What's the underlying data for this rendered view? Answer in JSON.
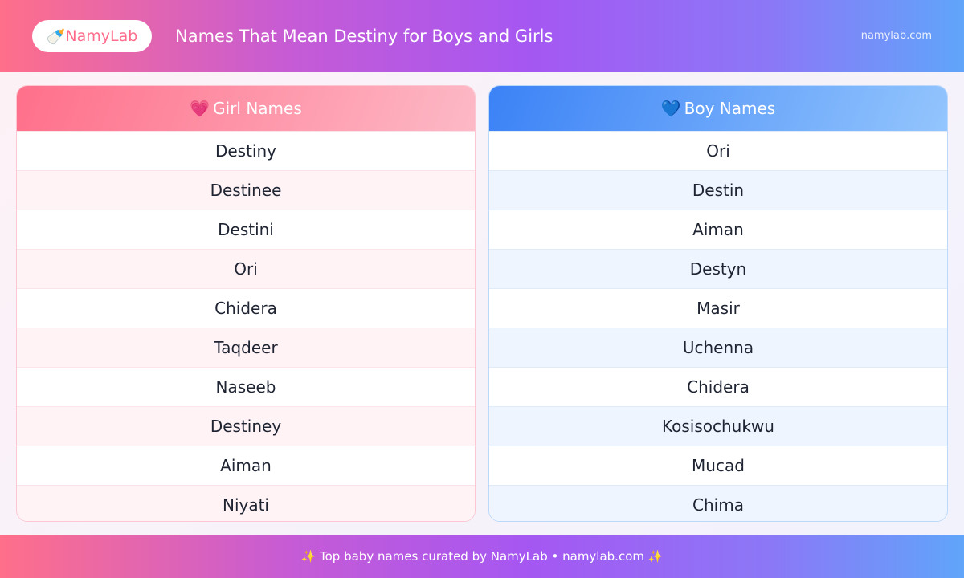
{
  "header": {
    "logo_icon": "baby-bottle-icon",
    "logo_icon_glyph": "🍼",
    "logo": "NamyLab",
    "title": "Names That Mean Destiny for Boys and Girls",
    "site": "namylab.com"
  },
  "girls": {
    "icon": "heart-icon",
    "icon_glyph": "💗",
    "title": "Girl Names",
    "names": [
      "Destiny",
      "Destinee",
      "Destini",
      "Ori",
      "Chidera",
      "Taqdeer",
      "Naseeb",
      "Destiney",
      "Aiman",
      "Niyati"
    ]
  },
  "boys": {
    "icon": "blue-heart-icon",
    "icon_glyph": "💙",
    "title": "Boy Names",
    "names": [
      "Ori",
      "Destin",
      "Aiman",
      "Destyn",
      "Masir",
      "Uchenna",
      "Chidera",
      "Kosisochukwu",
      "Mucad",
      "Chima"
    ]
  },
  "footer": {
    "sparkle": "✨",
    "text": "Top baby names curated by NamyLab • namylab.com"
  },
  "colors": {
    "girl": "#ff6f8a",
    "boy": "#3b82f6",
    "purple": "#a557f2"
  }
}
